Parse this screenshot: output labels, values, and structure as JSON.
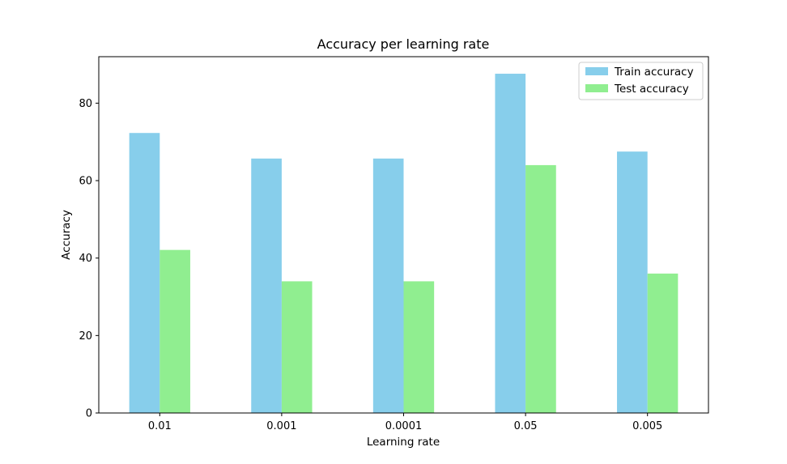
{
  "chart_data": {
    "type": "bar",
    "title": "Accuracy per learning rate",
    "xlabel": "Learning rate",
    "ylabel": "Accuracy",
    "categories": [
      "0.01",
      "0.001",
      "0.0001",
      "0.05",
      "0.005"
    ],
    "series": [
      {
        "name": "Train accuracy",
        "color": "#87ceeb",
        "values": [
          72.3,
          65.7,
          65.7,
          87.6,
          67.5
        ]
      },
      {
        "name": "Test accuracy",
        "color": "#90ee90",
        "values": [
          42.1,
          34.0,
          34.0,
          64.0,
          36.0
        ]
      }
    ],
    "ylim": [
      0,
      92
    ],
    "yticks": [
      0,
      20,
      40,
      60,
      80
    ],
    "grid": false,
    "legend_position": "top-right"
  }
}
